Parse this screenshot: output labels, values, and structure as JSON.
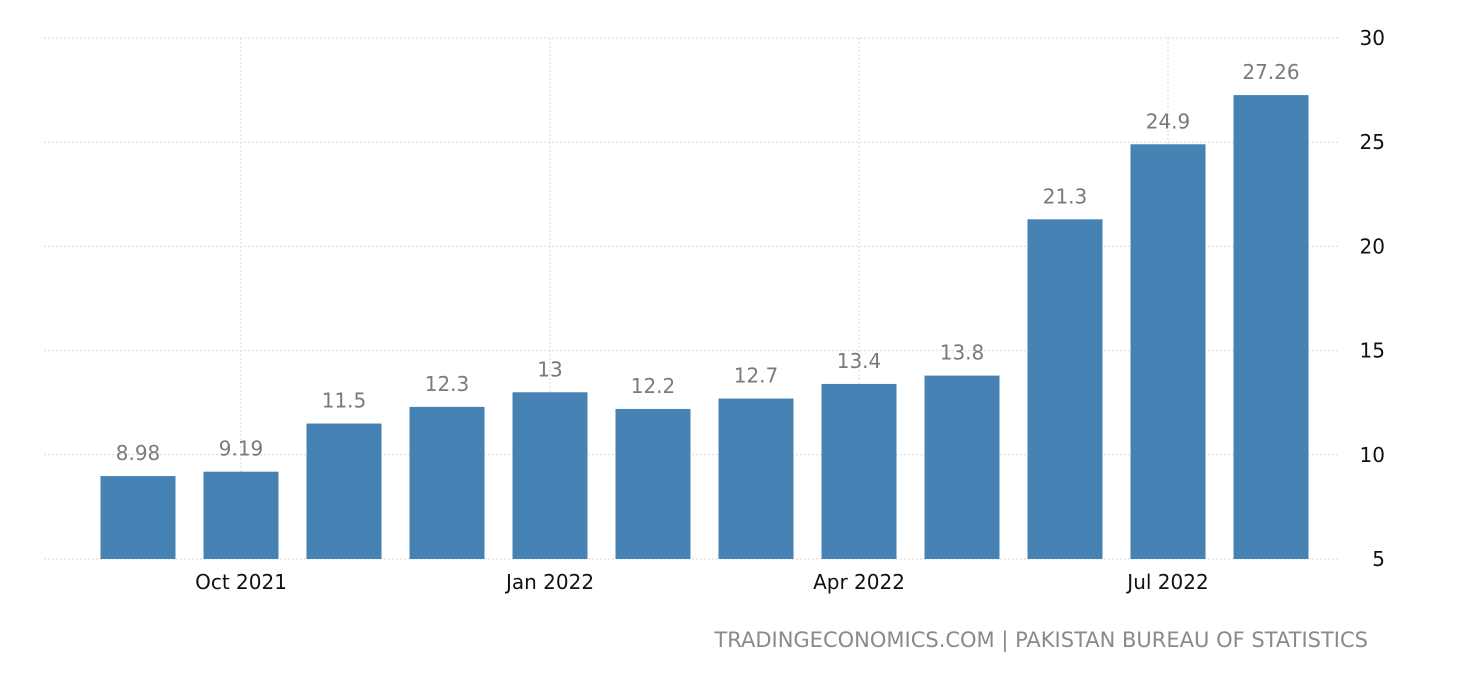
{
  "source_text": "TRADINGECONOMICS.COM | PAKISTAN BUREAU OF STATISTICS",
  "chart_data": {
    "type": "bar",
    "categories": [
      "Sep 2021",
      "Oct 2021",
      "Nov 2021",
      "Dec 2021",
      "Jan 2022",
      "Feb 2022",
      "Mar 2022",
      "Apr 2022",
      "May 2022",
      "Jun 2022",
      "Jul 2022",
      "Aug 2022"
    ],
    "values": [
      8.98,
      9.19,
      11.5,
      12.3,
      13,
      12.2,
      12.7,
      13.4,
      13.8,
      21.3,
      24.9,
      27.26
    ],
    "value_labels": [
      "8.98",
      "9.19",
      "11.5",
      "12.3",
      "13",
      "12.2",
      "12.7",
      "13.4",
      "13.8",
      "21.3",
      "24.9",
      "27.26"
    ],
    "x_tick_labels": [
      {
        "category": "Oct 2021",
        "label": "Oct 2021"
      },
      {
        "category": "Jan 2022",
        "label": "Jan 2022"
      },
      {
        "category": "Apr 2022",
        "label": "Apr 2022"
      },
      {
        "category": "Jul 2022",
        "label": "Jul 2022"
      }
    ],
    "y_ticks": [
      5,
      10,
      15,
      20,
      25,
      30
    ],
    "ylim": [
      5,
      30
    ],
    "y_axis_side": "right",
    "grid": true,
    "bar_color": "#4682b4",
    "title": "",
    "xlabel": "",
    "ylabel": ""
  }
}
